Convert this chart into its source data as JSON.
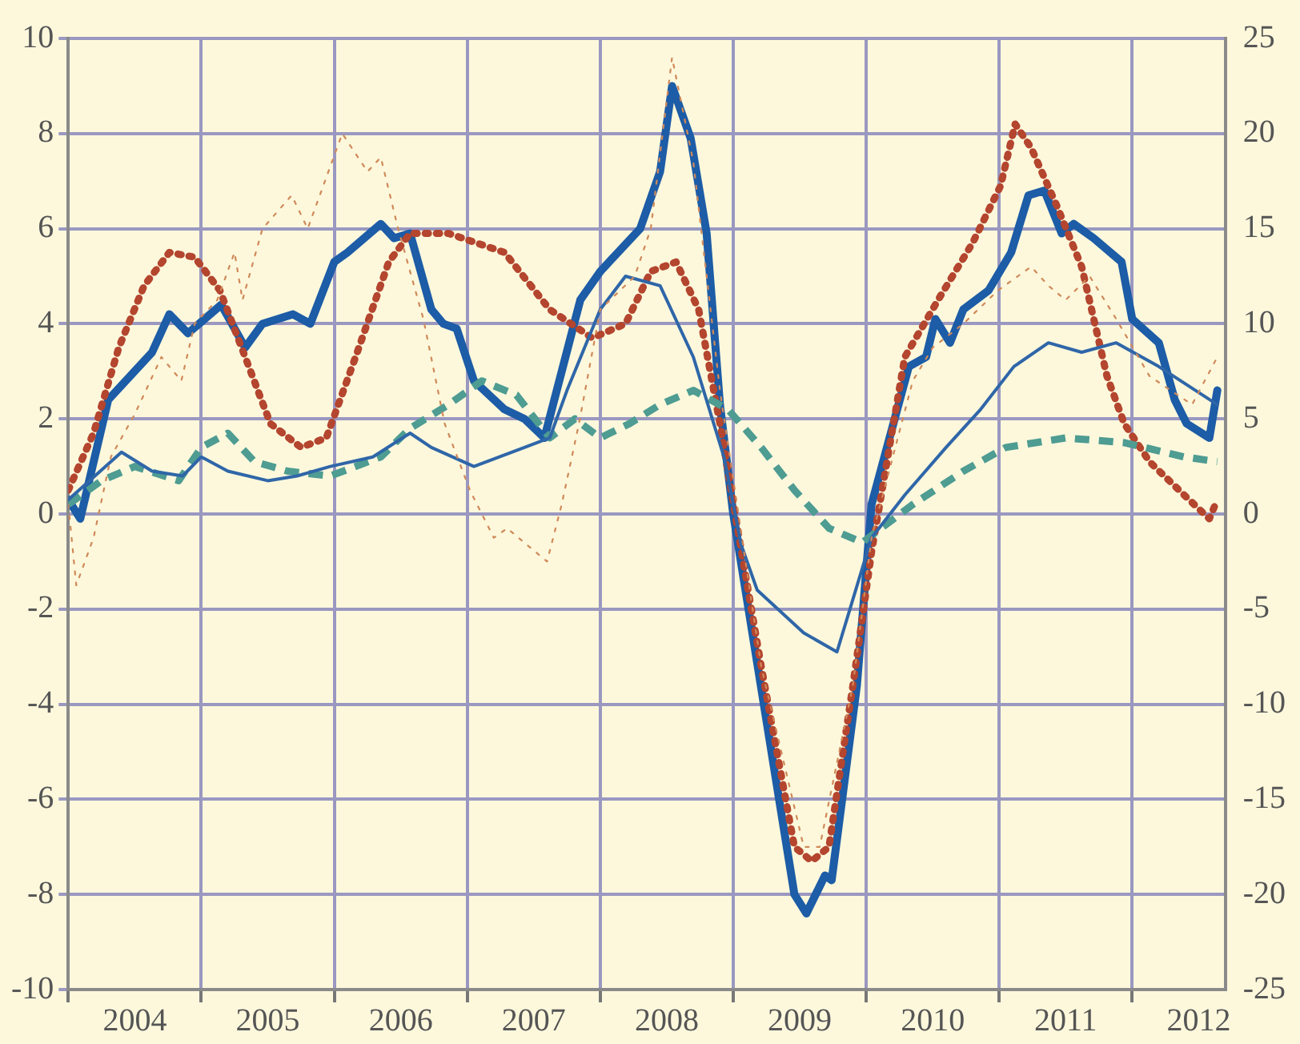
{
  "chart_data": {
    "type": "line",
    "xlim": [
      2004,
      2012.7
    ],
    "xticks": [
      {
        "value": 2004,
        "label": null
      },
      {
        "value": 2004.5,
        "label": "2004"
      },
      {
        "value": 2005,
        "label": null
      },
      {
        "value": 2005.5,
        "label": "2005"
      },
      {
        "value": 2006,
        "label": null
      },
      {
        "value": 2006.5,
        "label": "2006"
      },
      {
        "value": 2007,
        "label": null
      },
      {
        "value": 2007.5,
        "label": "2007"
      },
      {
        "value": 2008,
        "label": null
      },
      {
        "value": 2008.5,
        "label": "2008"
      },
      {
        "value": 2009,
        "label": null
      },
      {
        "value": 2009.5,
        "label": "2009"
      },
      {
        "value": 2010,
        "label": null
      },
      {
        "value": 2010.5,
        "label": "2010"
      },
      {
        "value": 2011,
        "label": null
      },
      {
        "value": 2011.5,
        "label": "2011"
      },
      {
        "value": 2012,
        "label": null
      },
      {
        "value": 2012.5,
        "label": "2012"
      }
    ],
    "ylim": [
      -10,
      10
    ],
    "yticks": [
      -10,
      -8,
      -6,
      -4,
      -2,
      0,
      2,
      4,
      6,
      8,
      10
    ],
    "y2lim": [
      -25,
      25
    ],
    "y2ticks": [
      -25,
      -20,
      -15,
      -10,
      -5,
      0,
      5,
      10,
      15,
      20,
      25
    ],
    "grid": true,
    "legend": false,
    "marker": "none",
    "series": [
      {
        "color": "#d08a5a",
        "line_style": "dotted",
        "x": [
          2004,
          2004.06,
          2004.19,
          2004.32,
          2004.5,
          2004.7,
          2004.85,
          2004.95,
          2005.12,
          2005.25,
          2005.31,
          2005.46,
          2005.68,
          2005.8,
          2006.06,
          2006.25,
          2006.35,
          2006.48,
          2006.67,
          2006.83,
          2007.02,
          2007.2,
          2007.3,
          2007.6,
          2007.71,
          2007.84,
          2008,
          2008.26,
          2008.38,
          2008.54,
          2008.7,
          2008.9,
          2009.21,
          2009.53,
          2009.65,
          2009.9,
          2010.04,
          2010.35,
          2010.5,
          2010.73,
          2010.99,
          2011.24,
          2011.37,
          2011.5,
          2011.68,
          2011.88,
          2012.13,
          2012.45,
          2012.64
        ],
        "values": [
          0.2,
          -1.5,
          -0.5,
          1.2,
          2.1,
          3.3,
          2.8,
          4,
          4.5,
          5.5,
          4.5,
          6,
          6.7,
          6,
          8,
          7.2,
          7.5,
          6,
          4.1,
          1.9,
          0.5,
          -0.5,
          -0.3,
          -1,
          0.2,
          1.9,
          4.3,
          5,
          6,
          9.6,
          7.4,
          2.6,
          -3.2,
          -7,
          -7,
          -3.6,
          -0.5,
          2.8,
          3.5,
          4,
          4.7,
          5.2,
          4.8,
          4.5,
          5,
          4.1,
          2.9,
          2.3,
          3.3
        ]
      },
      {
        "color": "#2f66a8",
        "line_style": "solid",
        "x": [
          2004,
          2004.4,
          2004.63,
          2004.86,
          2005,
          2005.2,
          2005.5,
          2005.72,
          2005.97,
          2006.29,
          2006.57,
          2006.73,
          2007.05,
          2007.43,
          2007.62,
          2007.75,
          2008,
          2008.19,
          2008.45,
          2008.7,
          2008.93,
          2009.06,
          2009.18,
          2009.53,
          2009.78,
          2010.04,
          2010.29,
          2010.6,
          2010.86,
          2011.11,
          2011.37,
          2011.62,
          2011.88,
          2012.2,
          2012.64
        ],
        "values": [
          0.3,
          1.3,
          0.9,
          0.8,
          1.2,
          0.9,
          0.7,
          0.8,
          1,
          1.2,
          1.7,
          1.4,
          1,
          1.4,
          1.6,
          2.6,
          4.3,
          5,
          4.8,
          3.3,
          1.2,
          -0.65,
          -1.6,
          -2.5,
          -2.9,
          -0.5,
          0.4,
          1.4,
          2.2,
          3.1,
          3.6,
          3.4,
          3.6,
          3.1,
          2.3
        ]
      },
      {
        "color": "#4e9c92",
        "line_style": "dashed",
        "x": [
          2004,
          2004.25,
          2004.5,
          2004.83,
          2005,
          2005.2,
          2005.4,
          2005.65,
          2005.97,
          2006.35,
          2006.57,
          2006.86,
          2007.11,
          2007.37,
          2007.62,
          2007.81,
          2008,
          2008.22,
          2008.45,
          2008.7,
          2008.96,
          2009.21,
          2009.46,
          2009.72,
          2009.97,
          2010.35,
          2010.73,
          2011.05,
          2011.5,
          2011.94,
          2012.39,
          2012.64
        ],
        "values": [
          0.2,
          0.7,
          1,
          0.7,
          1.4,
          1.7,
          1.1,
          0.9,
          0.8,
          1.2,
          1.8,
          2.3,
          2.8,
          2.5,
          1.6,
          2,
          1.6,
          1.9,
          2.3,
          2.6,
          2.2,
          1.4,
          0.5,
          -0.3,
          -0.6,
          0.2,
          0.9,
          1.4,
          1.6,
          1.5,
          1.2,
          1.1
        ]
      },
      {
        "color": "#b4452e",
        "line_style": "dotted",
        "x": [
          2004,
          2004.19,
          2004.38,
          2004.57,
          2004.76,
          2004.95,
          2005.14,
          2005.33,
          2005.52,
          2005.75,
          2005.94,
          2006.16,
          2006.41,
          2006.57,
          2006.86,
          2007.28,
          2007.62,
          2007.94,
          2008.19,
          2008.38,
          2008.57,
          2008.74,
          2008.9,
          2009.02,
          2009.21,
          2009.46,
          2009.59,
          2009.72,
          2009.9,
          2010.04,
          2010.29,
          2010.54,
          2010.8,
          2011.01,
          2011.12,
          2011.24,
          2011.43,
          2011.62,
          2011.81,
          2011.94,
          2012.13,
          2012.39,
          2012.58,
          2012.64
        ],
        "values": [
          0.5,
          1.7,
          3.5,
          4.8,
          5.5,
          5.4,
          4.7,
          3.3,
          1.9,
          1.4,
          1.6,
          3.3,
          5.3,
          5.9,
          5.9,
          5.5,
          4.3,
          3.7,
          4,
          5.1,
          5.3,
          4.3,
          1.9,
          -0.1,
          -3.2,
          -7,
          -7.3,
          -7,
          -3.6,
          -0.8,
          3.3,
          4.5,
          5.7,
          6.9,
          8.2,
          7.7,
          6.5,
          5.2,
          2.9,
          1.9,
          1.1,
          0.4,
          -0.1,
          0.3
        ]
      },
      {
        "color": "#1d5ca6",
        "line_style": "solid",
        "x": [
          2004,
          2004.09,
          2004.3,
          2004.63,
          2004.76,
          2004.9,
          2005.15,
          2005.33,
          2005.46,
          2005.69,
          2005.82,
          2006,
          2006.1,
          2006.35,
          2006.45,
          2006.57,
          2006.73,
          2006.82,
          2006.92,
          2007.05,
          2007.28,
          2007.43,
          2007.58,
          2007.85,
          2008,
          2008.3,
          2008.45,
          2008.54,
          2008.68,
          2008.8,
          2008.9,
          2009,
          2009.46,
          2009.55,
          2009.69,
          2009.74,
          2009.93,
          2010.04,
          2010.32,
          2010.45,
          2010.52,
          2010.63,
          2010.73,
          2010.92,
          2011.09,
          2011.22,
          2011.34,
          2011.47,
          2011.56,
          2011.71,
          2011.92,
          2012,
          2012.2,
          2012.32,
          2012.41,
          2012.58,
          2012.64
        ],
        "values": [
          0.3,
          -0.1,
          2.4,
          3.4,
          4.2,
          3.8,
          4.4,
          3.5,
          4,
          4.2,
          4,
          5.3,
          5.5,
          6.1,
          5.8,
          5.9,
          4.3,
          4,
          3.9,
          2.8,
          2.2,
          2,
          1.6,
          4.5,
          5.1,
          6,
          7.2,
          9,
          7.9,
          5.9,
          2.3,
          0,
          -8,
          -8.4,
          -7.6,
          -7.7,
          -3.6,
          0.2,
          3.1,
          3.3,
          4.1,
          3.6,
          4.3,
          4.7,
          5.5,
          6.7,
          6.8,
          5.9,
          6.1,
          5.8,
          5.3,
          4.1,
          3.6,
          2.4,
          1.9,
          1.6,
          2.6
        ]
      }
    ]
  }
}
